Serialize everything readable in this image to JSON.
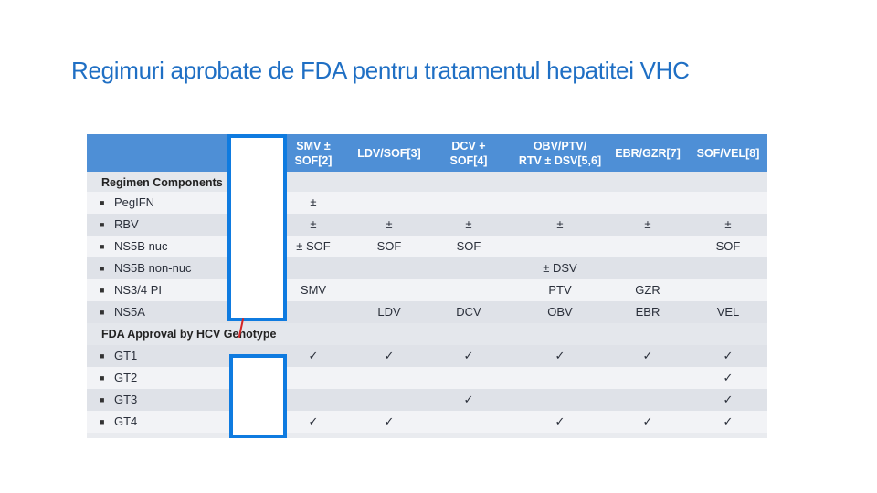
{
  "title": "Regimuri aprobate de FDA pentru tratamentul hepatitei VHC",
  "table": {
    "columns": [
      "SMV ±\nSOF[2]",
      "LDV/SOF[3]",
      "DCV +\nSOF[4]",
      "OBV/PTV/\nRTV ± DSV[5,6]",
      "EBR/GZR[7]",
      "SOF/VEL[8]"
    ],
    "rows": [
      {
        "label": "Regimen Components",
        "section": true,
        "cells": [
          "",
          "",
          "",
          "",
          "",
          ""
        ]
      },
      {
        "label": "PegIFN",
        "cells": [
          "±",
          "",
          "",
          "",
          "",
          ""
        ]
      },
      {
        "label": "RBV",
        "cells": [
          "±",
          "±",
          "±",
          "±",
          "±",
          "±"
        ]
      },
      {
        "label": "NS5B nuc",
        "cells": [
          "± SOF",
          "SOF",
          "SOF",
          "",
          "",
          "SOF"
        ]
      },
      {
        "label": "NS5B non-nuc",
        "cells": [
          "",
          "",
          "",
          "± DSV",
          "",
          ""
        ]
      },
      {
        "label": "NS3/4 PI",
        "cells": [
          "SMV",
          "",
          "",
          "PTV",
          "GZR",
          ""
        ]
      },
      {
        "label": "NS5A",
        "cells": [
          "",
          "LDV",
          "DCV",
          "OBV",
          "EBR",
          "VEL"
        ]
      },
      {
        "label": "FDA Approval by HCV Genotype",
        "section": true,
        "cells": [
          "",
          "",
          "",
          "",
          "",
          ""
        ]
      },
      {
        "label": "GT1",
        "cells": [
          "✓",
          "✓",
          "✓",
          "✓",
          "✓",
          "✓"
        ]
      },
      {
        "label": "GT2",
        "cells": [
          "",
          "",
          "",
          "",
          "",
          "✓"
        ]
      },
      {
        "label": "GT3",
        "cells": [
          "",
          "",
          "✓",
          "",
          "",
          "✓"
        ]
      },
      {
        "label": "GT4",
        "cells": [
          "✓",
          "✓",
          "",
          "✓",
          "✓",
          "✓"
        ]
      }
    ]
  },
  "colors": {
    "title": "#1f6fc4",
    "header": "#4e8fd6",
    "mask_border": "#0f7be0"
  }
}
